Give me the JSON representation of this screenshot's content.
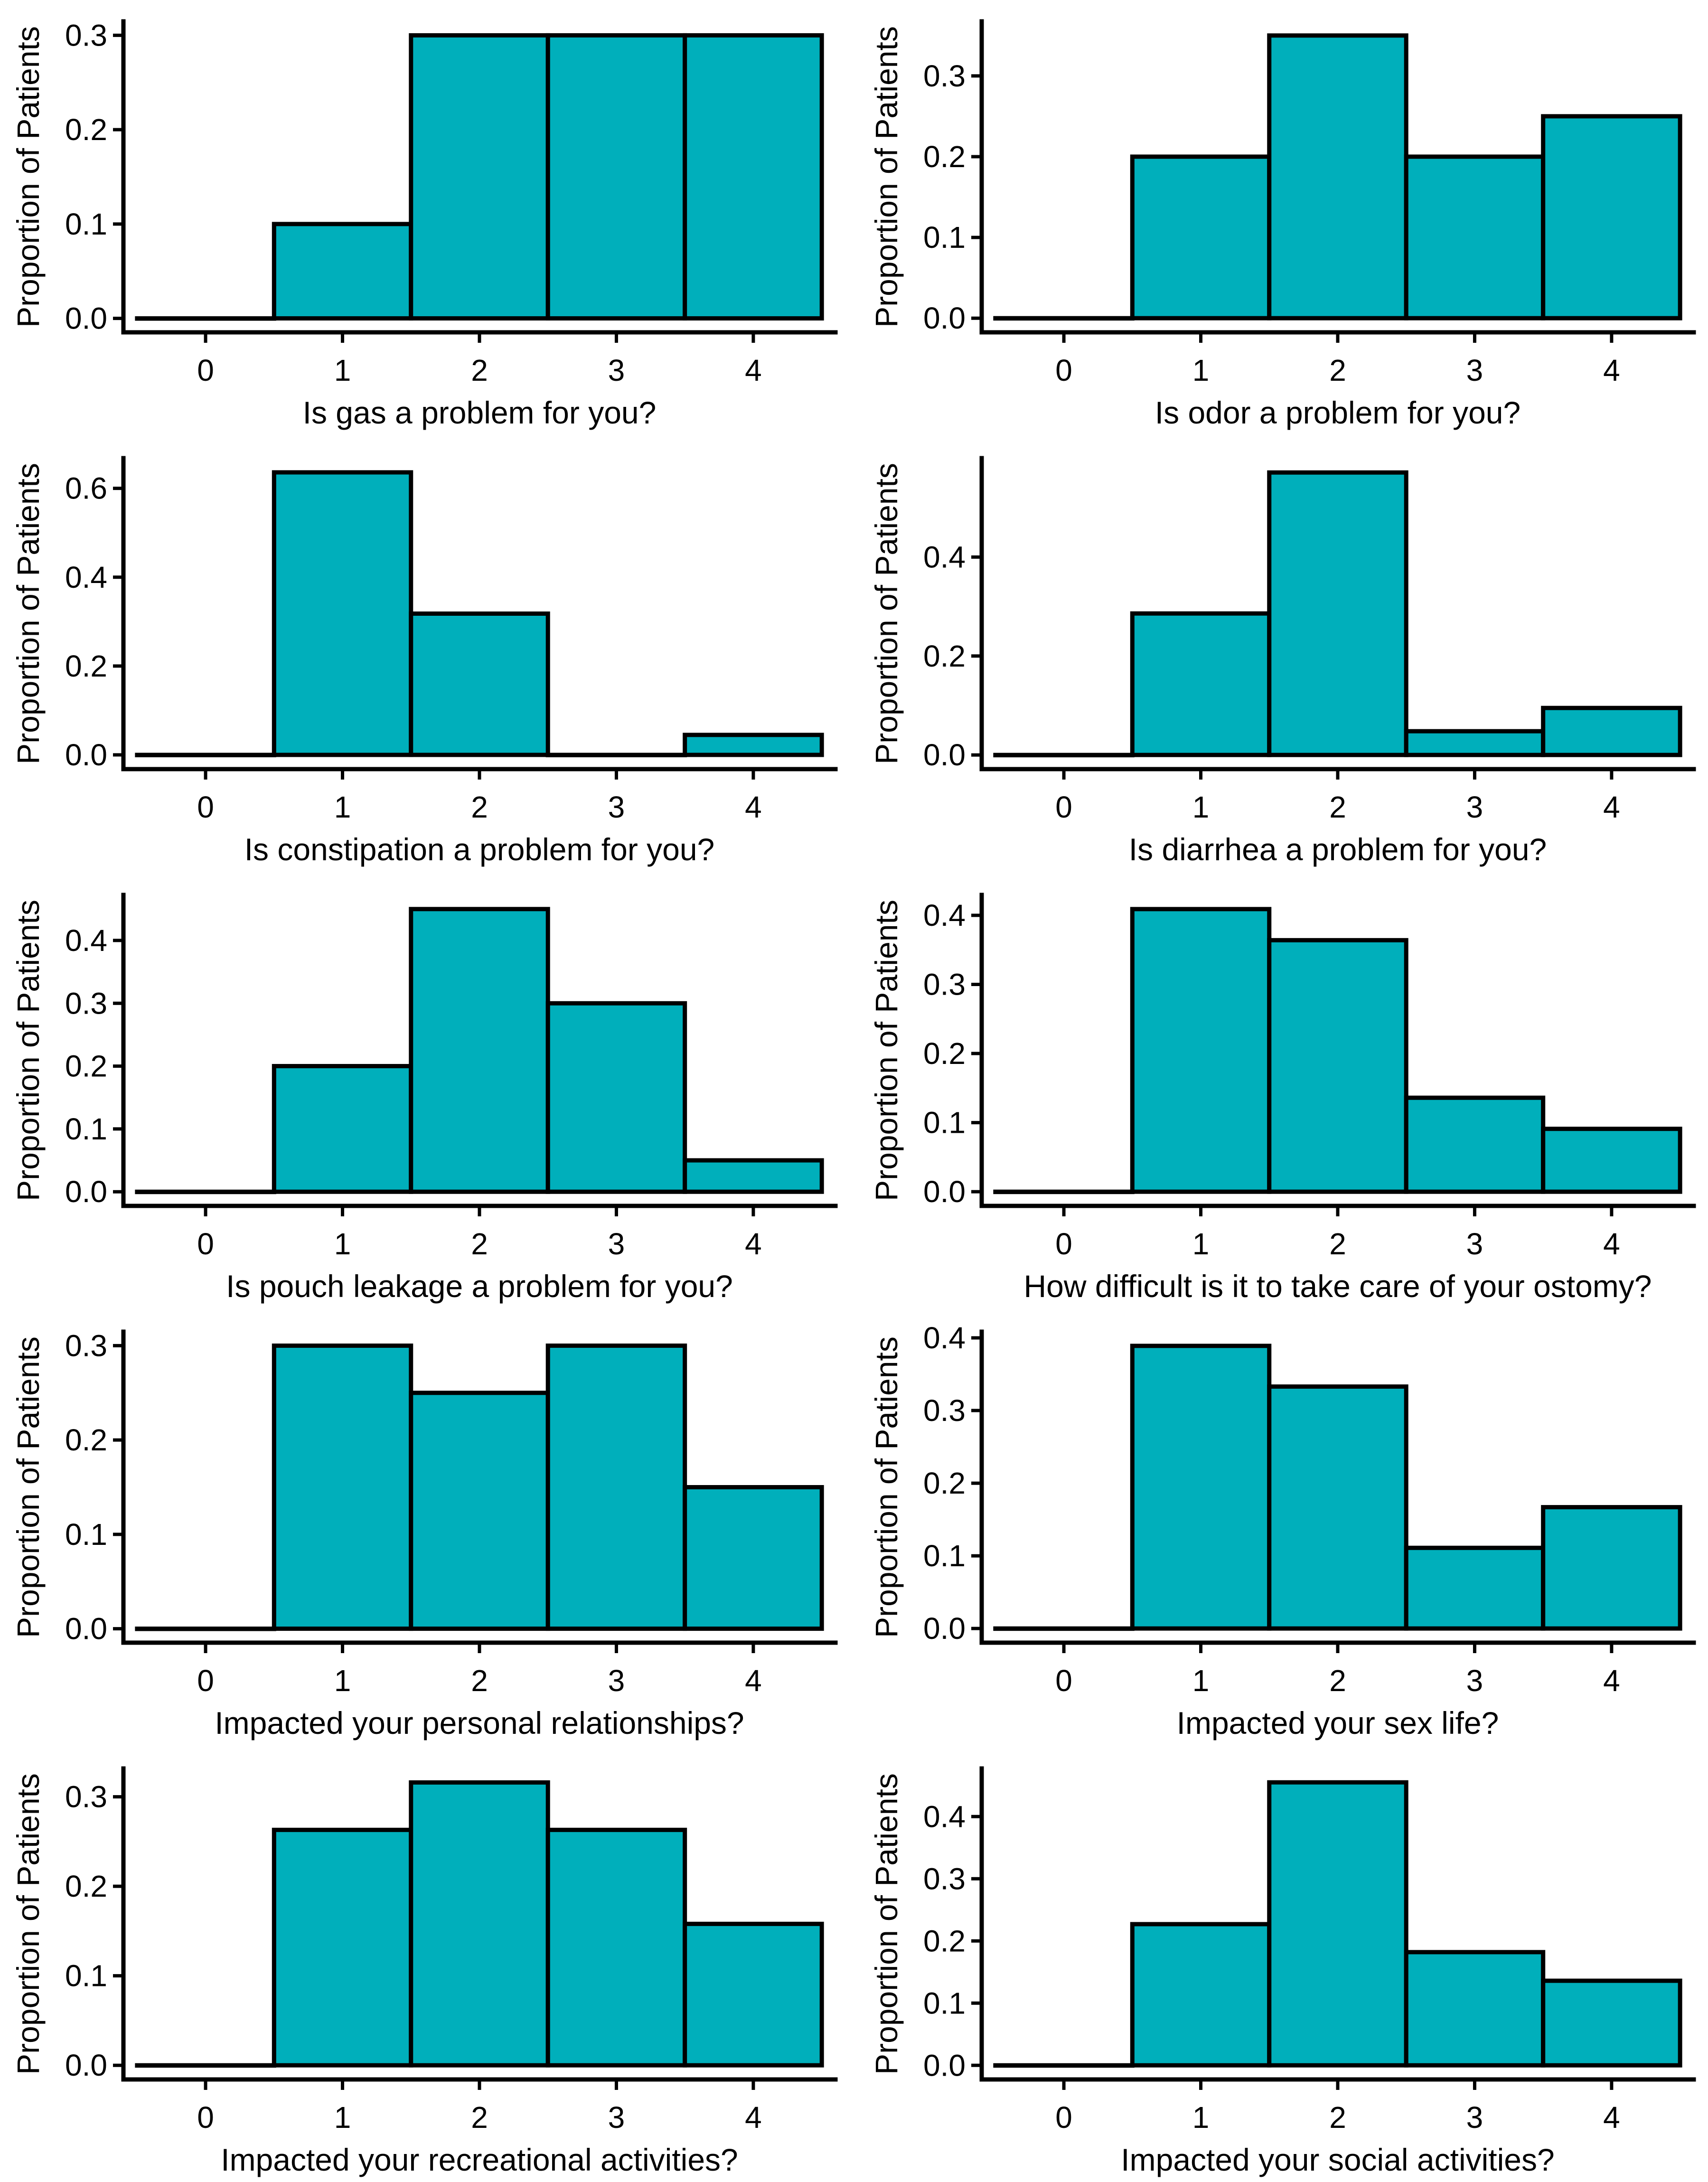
{
  "figure": {
    "bar_fill": "#00AFBB",
    "bar_stroke": "#000000",
    "ylabel": "Proportion of Patients"
  },
  "chart_data": [
    {
      "type": "bar",
      "title": "",
      "xlabel": "Is gas a problem for you?",
      "ylabel": "Proportion of Patients",
      "categories": [
        "0",
        "1",
        "2",
        "3",
        "4"
      ],
      "values": [
        0.0,
        0.1,
        0.3,
        0.3,
        0.3
      ],
      "yticks": [
        "0.0",
        "0.1",
        "0.2",
        "0.3"
      ],
      "ytick_values": [
        0.0,
        0.1,
        0.2,
        0.3
      ],
      "ylim": [
        -0.0148,
        0.3148
      ]
    },
    {
      "type": "bar",
      "title": "",
      "xlabel": "Is odor a problem for you?",
      "ylabel": "Proportion of Patients",
      "categories": [
        "0",
        "1",
        "2",
        "3",
        "4"
      ],
      "values": [
        0.0,
        0.2,
        0.35,
        0.2,
        0.25
      ],
      "yticks": [
        "0.0",
        "0.1",
        "0.2",
        "0.3"
      ],
      "ytick_values": [
        0.0,
        0.1,
        0.2,
        0.3
      ],
      "ylim": [
        -0.0175,
        0.3675
      ]
    },
    {
      "type": "bar",
      "title": "",
      "xlabel": "Is constipation a problem for you?",
      "ylabel": "Proportion of Patients",
      "categories": [
        "0",
        "1",
        "2",
        "3",
        "4"
      ],
      "values": [
        0.0,
        0.636,
        0.318,
        0.0,
        0.045
      ],
      "yticks": [
        "0.0",
        "0.2",
        "0.4",
        "0.6"
      ],
      "ytick_values": [
        0.0,
        0.2,
        0.4,
        0.6
      ],
      "ylim": [
        -0.032,
        0.668
      ]
    },
    {
      "type": "bar",
      "title": "",
      "xlabel": "Is diarrhea a problem for you?",
      "ylabel": "Proportion of Patients",
      "categories": [
        "0",
        "1",
        "2",
        "3",
        "4"
      ],
      "values": [
        0.0,
        0.286,
        0.571,
        0.048,
        0.095
      ],
      "yticks": [
        "0.0",
        "0.2",
        "0.4"
      ],
      "ytick_values": [
        0.0,
        0.2,
        0.4
      ],
      "ylim": [
        -0.0286,
        0.6
      ]
    },
    {
      "type": "bar",
      "title": "",
      "xlabel": "Is pouch leakage a problem for you?",
      "ylabel": "Proportion of Patients",
      "categories": [
        "0",
        "1",
        "2",
        "3",
        "4"
      ],
      "values": [
        0.0,
        0.2,
        0.45,
        0.3,
        0.05
      ],
      "yticks": [
        "0.0",
        "0.1",
        "0.2",
        "0.3",
        "0.4"
      ],
      "ytick_values": [
        0.0,
        0.1,
        0.2,
        0.3,
        0.4
      ],
      "ylim": [
        -0.0225,
        0.4725
      ]
    },
    {
      "type": "bar",
      "title": "",
      "xlabel": "How difficult is it to take care of your ostomy?",
      "ylabel": "Proportion of Patients",
      "categories": [
        "0",
        "1",
        "2",
        "3",
        "4"
      ],
      "values": [
        0.0,
        0.409,
        0.364,
        0.136,
        0.091
      ],
      "yticks": [
        "0.0",
        "0.1",
        "0.2",
        "0.3",
        "0.4"
      ],
      "ytick_values": [
        0.0,
        0.1,
        0.2,
        0.3,
        0.4
      ],
      "ylim": [
        -0.0205,
        0.4295
      ]
    },
    {
      "type": "bar",
      "title": "",
      "xlabel": "Impacted your personal relationships?",
      "ylabel": "Proportion of Patients",
      "categories": [
        "0",
        "1",
        "2",
        "3",
        "4"
      ],
      "values": [
        0.0,
        0.3,
        0.25,
        0.3,
        0.15
      ],
      "yticks": [
        "0.0",
        "0.1",
        "0.2",
        "0.3"
      ],
      "ytick_values": [
        0.0,
        0.1,
        0.2,
        0.3
      ],
      "ylim": [
        -0.0148,
        0.3148
      ]
    },
    {
      "type": "bar",
      "title": "",
      "xlabel": "Impacted your sex life?",
      "ylabel": "Proportion of Patients",
      "categories": [
        "0",
        "1",
        "2",
        "3",
        "4"
      ],
      "values": [
        0.0,
        0.389,
        0.333,
        0.111,
        0.167
      ],
      "yticks": [
        "0.0",
        "0.1",
        "0.2",
        "0.3",
        "0.4"
      ],
      "ytick_values": [
        0.0,
        0.1,
        0.2,
        0.3,
        0.4
      ],
      "ylim": [
        -0.0195,
        0.4085
      ]
    },
    {
      "type": "bar",
      "title": "",
      "xlabel": "Impacted your recreational activities?",
      "ylabel": "Proportion of Patients",
      "categories": [
        "0",
        "1",
        "2",
        "3",
        "4"
      ],
      "values": [
        0.0,
        0.263,
        0.316,
        0.263,
        0.158
      ],
      "yticks": [
        "0.0",
        "0.1",
        "0.2",
        "0.3"
      ],
      "ytick_values": [
        0.0,
        0.1,
        0.2,
        0.3
      ],
      "ylim": [
        -0.0158,
        0.3316
      ]
    },
    {
      "type": "bar",
      "title": "",
      "xlabel": "Impacted your social activities?",
      "ylabel": "Proportion of Patients",
      "categories": [
        "0",
        "1",
        "2",
        "3",
        "4"
      ],
      "values": [
        0.0,
        0.227,
        0.455,
        0.182,
        0.136
      ],
      "yticks": [
        "0.0",
        "0.1",
        "0.2",
        "0.3",
        "0.4"
      ],
      "ytick_values": [
        0.0,
        0.1,
        0.2,
        0.3,
        0.4
      ],
      "ylim": [
        -0.0227,
        0.4773
      ]
    }
  ]
}
